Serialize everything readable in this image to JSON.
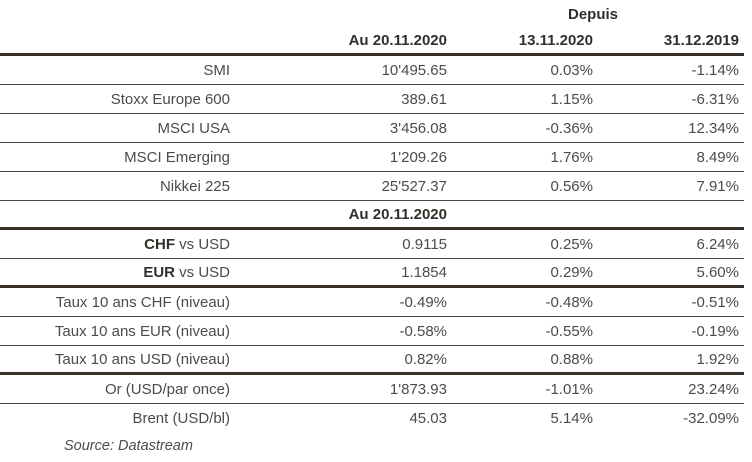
{
  "table": {
    "header": {
      "depuis": "Depuis",
      "col_level": "Au 20.11.2020",
      "col_since_week": "13.11.2020",
      "col_since_ytd": "31.12.2019"
    },
    "section_header": "Au 20.11.2020",
    "rows": [
      {
        "label": "SMI",
        "v1": "10'495.65",
        "v2": "0.03%",
        "v3": "-1.14%"
      },
      {
        "label": "Stoxx Europe 600",
        "v1": "389.61",
        "v2": "1.15%",
        "v3": "-6.31%"
      },
      {
        "label": "MSCI USA",
        "v1": "3'456.08",
        "v2": "-0.36%",
        "v3": "12.34%"
      },
      {
        "label": "MSCI Emerging",
        "v1": "1'209.26",
        "v2": "1.76%",
        "v3": "8.49%"
      },
      {
        "label": "Nikkei 225",
        "v1": "25'527.37",
        "v2": "0.56%",
        "v3": "7.91%"
      },
      {
        "label_bold": "CHF",
        "label": " vs USD",
        "v1": "0.9115",
        "v2": "0.25%",
        "v3": "6.24%"
      },
      {
        "label_bold": "EUR",
        "label": " vs USD",
        "v1": "1.1854",
        "v2": "0.29%",
        "v3": "5.60%"
      },
      {
        "label": "Taux 10 ans CHF (niveau)",
        "v1": "-0.49%",
        "v2": "-0.48%",
        "v3": "-0.51%"
      },
      {
        "label": "Taux 10 ans EUR (niveau)",
        "v1": "-0.58%",
        "v2": "-0.55%",
        "v3": "-0.19%"
      },
      {
        "label": "Taux 10 ans USD (niveau)",
        "v1": "0.82%",
        "v2": "0.88%",
        "v3": "1.92%"
      },
      {
        "label": "Or (USD/par once)",
        "v1": "1'873.93",
        "v2": "-1.01%",
        "v3": "23.24%"
      },
      {
        "label": "Brent (USD/bl)",
        "v1": "45.03",
        "v2": "5.14%",
        "v3": "-32.09%"
      }
    ],
    "source": "Source: Datastream"
  },
  "colors": {
    "rule_thick": "#39322b",
    "rule_thin": "#4a443d",
    "text": "#4b4b4b",
    "text_bold": "#332e29",
    "background": "#ffffff"
  }
}
